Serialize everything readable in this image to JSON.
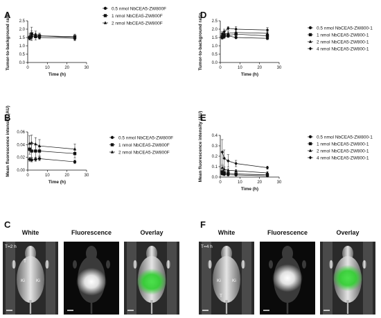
{
  "chart_data": [
    {
      "panel": "A",
      "type": "line",
      "xlabel": "Time (h)",
      "ylabel": "Tumor-to-background ratio",
      "xlim": [
        0,
        30
      ],
      "ylim": [
        0,
        2.5
      ],
      "xticks": [
        "0",
        "10",
        "20",
        "30"
      ],
      "yticks": [
        "0.0",
        "0.5",
        "1.0",
        "1.5",
        "2.0",
        "2.5"
      ],
      "legend_position": "right",
      "series": [
        {
          "name": "0.5 nmol NbCEA5-ZW800F",
          "marker": "circle",
          "x": [
            1,
            2,
            4,
            6,
            24
          ],
          "y": [
            1.48,
            1.55,
            1.58,
            1.5,
            1.45
          ],
          "err": [
            0.1,
            0.12,
            0.1,
            0.1,
            0.1
          ]
        },
        {
          "name": "1 nmol NbCEA5-ZW800F",
          "marker": "square",
          "x": [
            1,
            2,
            4,
            6,
            24
          ],
          "y": [
            1.5,
            1.72,
            1.55,
            1.6,
            1.55
          ],
          "err": [
            0.15,
            0.4,
            0.2,
            0.15,
            0.15
          ]
        },
        {
          "name": "2 nmol NbCEA5-ZW800F",
          "marker": "triangle",
          "x": [
            1,
            2,
            4,
            6,
            24
          ],
          "y": [
            1.55,
            1.65,
            1.7,
            1.6,
            1.5
          ],
          "err": [
            0.2,
            0.25,
            0.18,
            0.15,
            0.2
          ]
        }
      ]
    },
    {
      "panel": "B",
      "type": "line",
      "xlabel": "Time (h)",
      "ylabel": "Mean fluorescence intensity (AU)",
      "xlim": [
        0,
        30
      ],
      "ylim": [
        0,
        0.06
      ],
      "xticks": [
        "0",
        "10",
        "20",
        "30"
      ],
      "yticks": [
        "0.00",
        "0.02",
        "0.04",
        "0.06"
      ],
      "legend_position": "right",
      "series": [
        {
          "name": "0.5 nmol NbCEA5-ZW800F",
          "marker": "circle",
          "x": [
            1,
            2,
            4,
            6,
            24
          ],
          "y": [
            0.017,
            0.016,
            0.017,
            0.018,
            0.013
          ],
          "err": [
            0.003,
            0.003,
            0.003,
            0.003,
            0.003
          ]
        },
        {
          "name": "1 nmol NbCEA5-ZW800F",
          "marker": "square",
          "x": [
            1,
            2,
            4,
            6,
            24
          ],
          "y": [
            0.033,
            0.03,
            0.03,
            0.03,
            0.026
          ],
          "err": [
            0.008,
            0.01,
            0.01,
            0.008,
            0.007
          ]
        },
        {
          "name": "2 nmol NbCEA5-ZW800F",
          "marker": "triangle",
          "x": [
            1,
            2,
            4,
            6,
            24
          ],
          "y": [
            0.042,
            0.043,
            0.041,
            0.038,
            0.033
          ],
          "err": [
            0.012,
            0.012,
            0.01,
            0.01,
            0.008
          ]
        }
      ]
    },
    {
      "panel": "D",
      "type": "line",
      "xlabel": "Time (h)",
      "ylabel": "Tumor-to-background ratio",
      "xlim": [
        0,
        30
      ],
      "ylim": [
        0,
        2.5
      ],
      "xticks": [
        "0",
        "10",
        "20",
        "30"
      ],
      "yticks": [
        "0.0",
        "0.5",
        "1.0",
        "1.5",
        "2.0",
        "2.5"
      ],
      "legend_position": "right",
      "series": [
        {
          "name": "0.5 nmol NbCEA5-ZW800-1",
          "marker": "circle",
          "x": [
            1,
            2,
            4,
            8,
            24
          ],
          "y": [
            1.48,
            1.55,
            1.6,
            1.5,
            1.45
          ],
          "err": [
            0.08,
            0.1,
            0.1,
            0.08,
            0.08
          ]
        },
        {
          "name": "1 nmol NbCEA5-ZW800-1",
          "marker": "square",
          "x": [
            1,
            2,
            4,
            8,
            24
          ],
          "y": [
            1.55,
            1.65,
            1.62,
            1.7,
            1.6
          ],
          "err": [
            0.1,
            0.12,
            0.1,
            0.12,
            0.1
          ]
        },
        {
          "name": "2 nmol NbCEA5-ZW800-1",
          "marker": "triangle",
          "x": [
            1,
            2,
            4,
            8,
            24
          ],
          "y": [
            1.6,
            1.72,
            1.75,
            1.8,
            1.75
          ],
          "err": [
            0.12,
            0.15,
            0.12,
            0.15,
            0.12
          ]
        },
        {
          "name": "4 nmol NbCEA5-ZW800-1",
          "marker": "diamond",
          "x": [
            1,
            2,
            4,
            8,
            24
          ],
          "y": [
            1.72,
            1.85,
            2.05,
            2.0,
            1.95
          ],
          "err": [
            0.12,
            0.15,
            0.1,
            0.15,
            0.15
          ]
        }
      ]
    },
    {
      "panel": "E",
      "type": "line",
      "xlabel": "Time (h)",
      "ylabel": "Mean fluorescence intensity (AU)",
      "xlim": [
        0,
        30
      ],
      "ylim": [
        0,
        0.4
      ],
      "xticks": [
        "0",
        "10",
        "20",
        "30"
      ],
      "yticks": [
        "0.0",
        "0.1",
        "0.2",
        "0.3",
        "0.4"
      ],
      "legend_position": "right",
      "series": [
        {
          "name": "0.5 nmol NbCEA5-ZW800-1",
          "marker": "circle",
          "x": [
            1,
            2,
            4,
            8,
            24
          ],
          "y": [
            0.03,
            0.025,
            0.022,
            0.02,
            0.012
          ],
          "err": [
            0.008,
            0.006,
            0.005,
            0.005,
            0.004
          ]
        },
        {
          "name": "1 nmol NbCEA5-ZW800-1",
          "marker": "square",
          "x": [
            1,
            2,
            4,
            8,
            24
          ],
          "y": [
            0.05,
            0.04,
            0.035,
            0.03,
            0.022
          ],
          "err": [
            0.01,
            0.008,
            0.008,
            0.007,
            0.005
          ]
        },
        {
          "name": "2 nmol NbCEA5-ZW800-1",
          "marker": "triangle",
          "x": [
            1,
            2,
            4,
            8,
            24
          ],
          "y": [
            0.09,
            0.075,
            0.065,
            0.06,
            0.04
          ],
          "err": [
            0.02,
            0.018,
            0.015,
            0.012,
            0.01
          ]
        },
        {
          "name": "4 nmol NbCEA5-ZW800-1",
          "marker": "diamond",
          "x": [
            1,
            2,
            4,
            8,
            24
          ],
          "y": [
            0.24,
            0.18,
            0.155,
            0.13,
            0.09
          ],
          "err": [
            0.12,
            0.08,
            0.06,
            0.03,
            0.015
          ]
        }
      ]
    }
  ],
  "imaging": [
    {
      "panel": "C",
      "time_label": "T=2 h",
      "columns": [
        "White",
        "Fluorescence",
        "Overlay"
      ],
      "mouse_labels": [
        "T",
        "Ki",
        "Ki"
      ]
    },
    {
      "panel": "F",
      "time_label": "T=4 h",
      "columns": [
        "White",
        "Fluorescence",
        "Overlay"
      ],
      "mouse_labels": [
        "Ki",
        "Ki",
        "T"
      ]
    }
  ],
  "colors": {
    "ink": "#111111",
    "green": "#3ccf3c",
    "mouse_bg": "#1c1c1c"
  }
}
